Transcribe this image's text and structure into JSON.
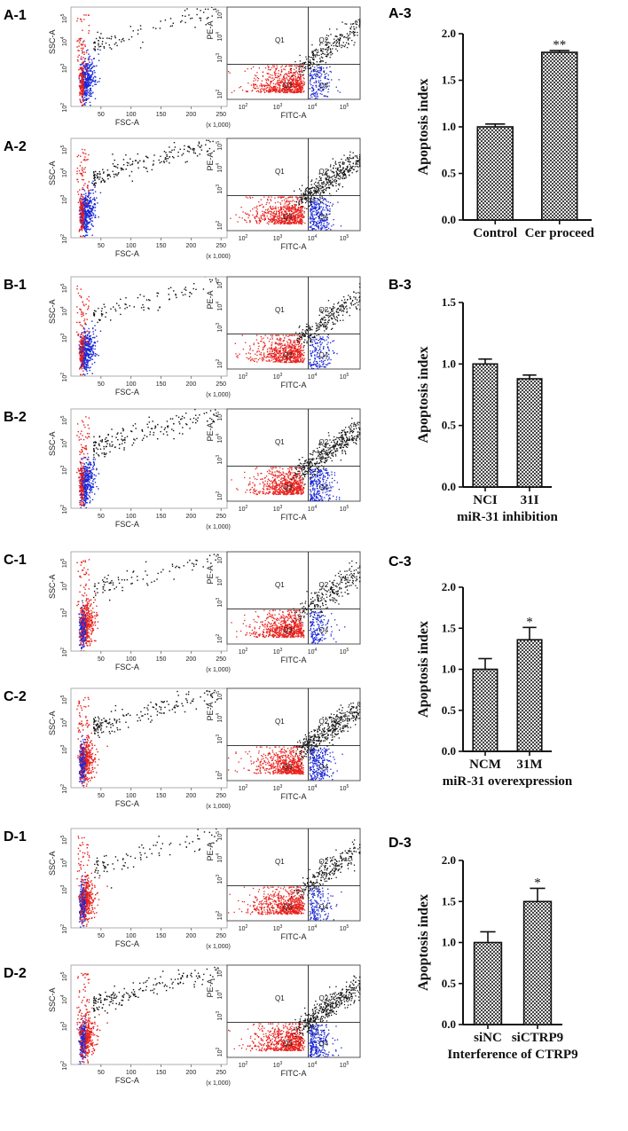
{
  "figure": {
    "rows": [
      {
        "id": "A",
        "scatter_labels": [
          "A-1",
          "A-2"
        ],
        "bar_label": "A-3"
      },
      {
        "id": "B",
        "scatter_labels": [
          "B-1",
          "B-2"
        ],
        "bar_label": "B-3"
      },
      {
        "id": "C",
        "scatter_labels": [
          "C-1",
          "C-2"
        ],
        "bar_label": "C-3"
      },
      {
        "id": "D",
        "scatter_labels": [
          "D-1",
          "D-2"
        ],
        "bar_label": "D-3"
      }
    ],
    "fsc_plot": {
      "xlabel": "FSC-A",
      "ylabel": "SSC-A",
      "x_ticks": [
        "50",
        "100",
        "150",
        "200",
        "250"
      ],
      "x_scale_note": "(x 1,000)",
      "y_ticks": [
        "10",
        "10",
        "10",
        "10"
      ],
      "y_tick_exponents": [
        "2",
        "3",
        "4",
        "5"
      ],
      "colors": {
        "gated_red": "#e8201c",
        "gated_blue": "#1a28d8",
        "events_black": "#111111"
      }
    },
    "annexin_plot": {
      "xlabel": "FITC-A",
      "ylabel": "PE-A",
      "x_ticks": [
        "10",
        "10",
        "10",
        "10"
      ],
      "x_tick_exponents": [
        "2",
        "3",
        "4",
        "5"
      ],
      "y_ticks": [
        "10",
        "10",
        "10",
        "10"
      ],
      "y_tick_exponents": [
        "2",
        "3",
        "4",
        "5"
      ],
      "quadrants": [
        "Q1",
        "Q2",
        "Q3",
        "Q4"
      ]
    }
  },
  "chart_data": [
    {
      "panel": "A-3",
      "type": "bar",
      "categories": [
        "Control",
        "Cer proceed"
      ],
      "values": [
        1.0,
        1.8
      ],
      "errors": [
        0.03,
        0.02
      ],
      "significance": [
        "",
        "**"
      ],
      "ylabel": "Apoptosis index",
      "xlabel": "",
      "ylim": [
        0,
        2.0
      ],
      "y_ticks": [
        "0.0",
        "0.5",
        "1.0",
        "1.5",
        "2.0"
      ]
    },
    {
      "panel": "B-3",
      "type": "bar",
      "categories": [
        "NCI",
        "31I"
      ],
      "values": [
        1.0,
        0.88
      ],
      "errors": [
        0.04,
        0.03
      ],
      "significance": [
        "",
        ""
      ],
      "ylabel": "Apoptosis index",
      "xlabel": "miR-31 inhibition",
      "ylim": [
        0,
        1.5
      ],
      "y_ticks": [
        "0.0",
        "0.5",
        "1.0",
        "1.5"
      ]
    },
    {
      "panel": "C-3",
      "type": "bar",
      "categories": [
        "NCM",
        "31M"
      ],
      "values": [
        1.0,
        1.36
      ],
      "errors": [
        0.13,
        0.15
      ],
      "significance": [
        "",
        "*"
      ],
      "ylabel": "Apoptosis index",
      "xlabel": "miR-31 overexpression",
      "ylim": [
        0,
        2.0
      ],
      "y_ticks": [
        "0.0",
        "0.5",
        "1.0",
        "1.5",
        "2.0"
      ]
    },
    {
      "panel": "D-3",
      "type": "bar",
      "categories": [
        "siNC",
        "siCTRP9"
      ],
      "values": [
        1.0,
        1.5
      ],
      "errors": [
        0.13,
        0.16
      ],
      "significance": [
        "",
        "*"
      ],
      "ylabel": "Apoptosis index",
      "xlabel": "Interference of CTRP9",
      "ylim": [
        0,
        2.0
      ],
      "y_ticks": [
        "0.0",
        "0.5",
        "1.0",
        "1.5",
        "2.0"
      ]
    }
  ]
}
